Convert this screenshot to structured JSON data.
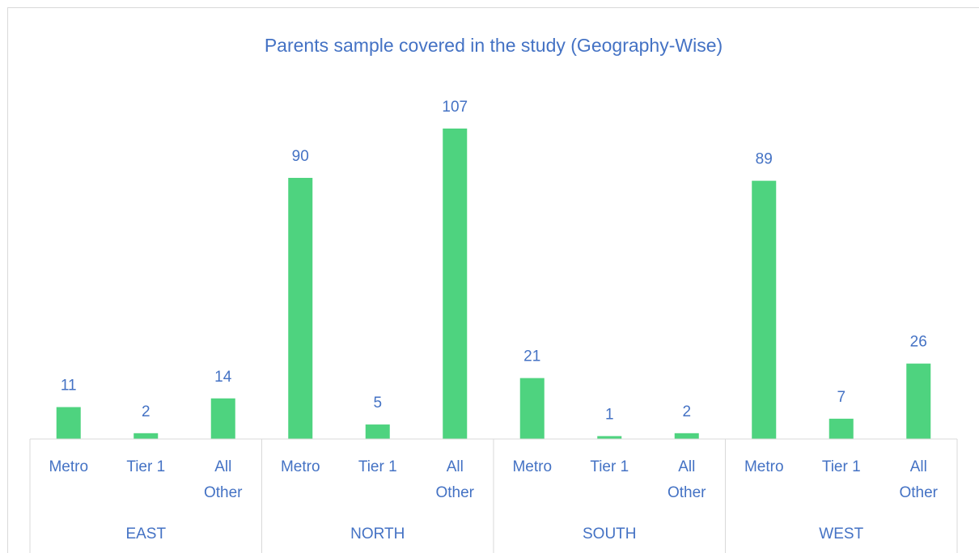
{
  "chart_data": {
    "type": "bar",
    "title": "Parents sample covered in the study (Geography-Wise)",
    "categories": [
      "Metro",
      "Tier 1",
      "All Other",
      "Metro",
      "Tier 1",
      "All Other",
      "Metro",
      "Tier 1",
      "All Other",
      "Metro",
      "Tier 1",
      "All Other"
    ],
    "groups": [
      "EAST",
      "NORTH",
      "SOUTH",
      "WEST"
    ],
    "values": [
      11,
      2,
      14,
      90,
      5,
      107,
      21,
      1,
      2,
      89,
      7,
      26
    ],
    "color": "#4ed37f"
  }
}
